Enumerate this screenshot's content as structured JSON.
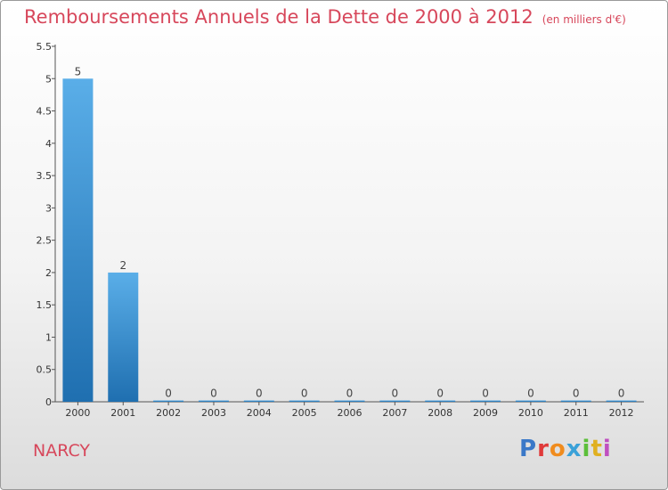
{
  "colors": {
    "title": "#d7475b",
    "bar_top": "#5aaee8",
    "bar_bottom": "#1f6fb0"
  },
  "footer": {
    "town": "NARCY"
  },
  "logo": {
    "text": "Proxiti"
  },
  "chart_data": {
    "type": "bar",
    "title": "Remboursements Annuels de la Dette de 2000 à 2012",
    "unit_label": "(en milliers d'€)",
    "categories": [
      "2000",
      "2001",
      "2002",
      "2003",
      "2004",
      "2005",
      "2006",
      "2007",
      "2008",
      "2009",
      "2010",
      "2011",
      "2012"
    ],
    "values": [
      5,
      2,
      0,
      0,
      0,
      0,
      0,
      0,
      0,
      0,
      0,
      0,
      0
    ],
    "data_labels": [
      "5",
      "2",
      "0",
      "0",
      "0",
      "0",
      "0",
      "0",
      "0",
      "0",
      "0",
      "0",
      "0"
    ],
    "y_ticks": [
      "0",
      "0.5",
      "1",
      "1.5",
      "2",
      "2.5",
      "3",
      "3.5",
      "4",
      "4.5",
      "5",
      "5.5"
    ],
    "y_tick_values": [
      0,
      0.5,
      1,
      1.5,
      2,
      2.5,
      3,
      3.5,
      4,
      4.5,
      5,
      5.5
    ],
    "ylim": [
      0,
      5.5
    ],
    "xlabel": "",
    "ylabel": "",
    "grid": false
  }
}
